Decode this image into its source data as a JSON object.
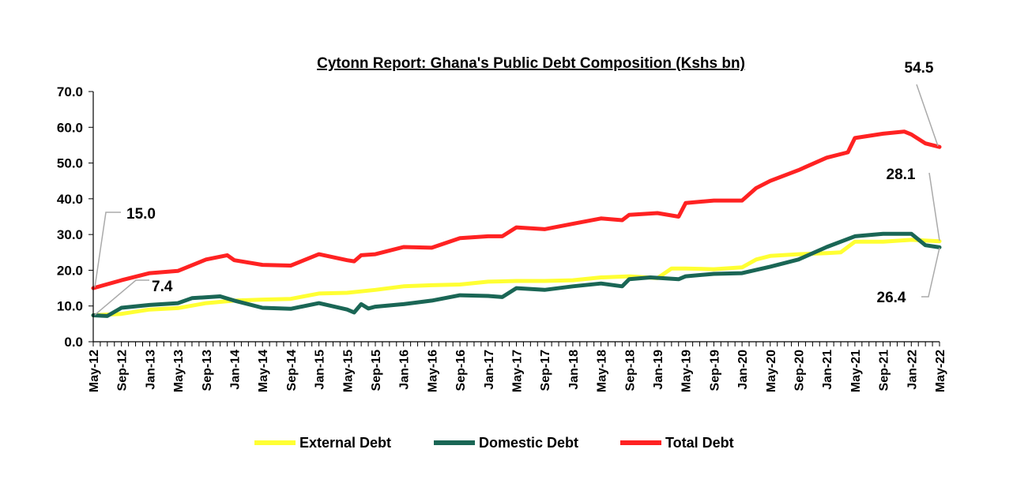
{
  "chart_data": {
    "type": "line",
    "title": "Cytonn Report: Ghana's Public Debt Composition (Kshs bn)",
    "xlabel": "",
    "ylabel": "",
    "ylim": [
      0,
      70
    ],
    "yticks": [
      "0.0",
      "10.0",
      "20.0",
      "30.0",
      "40.0",
      "50.0",
      "60.0",
      "70.0"
    ],
    "x_tick_labels": [
      "May-12",
      "Sep-12",
      "Jan-13",
      "May-13",
      "Sep-13",
      "Jan-14",
      "May-14",
      "Sep-14",
      "Jan-15",
      "May-15",
      "Sep-15",
      "Jan-16",
      "May-16",
      "Sep-16",
      "Jan-17",
      "May-17",
      "Sep-17",
      "Jan-18",
      "May-18",
      "Sep-18",
      "Jan-19",
      "May-19",
      "Sep-19",
      "Jan-20",
      "May-20",
      "Sep-20",
      "Jan-21",
      "May-21",
      "Sep-21",
      "Jan-22",
      "May-22"
    ],
    "x_range": [
      "May-12",
      "May-22"
    ],
    "grid": false,
    "legend_position": "bottom",
    "series": [
      {
        "name": "External Debt",
        "color": "#ffff33",
        "points": [
          [
            "May-12",
            7.4
          ],
          [
            "Sep-12",
            7.8
          ],
          [
            "Jan-13",
            9.0
          ],
          [
            "May-13",
            9.4
          ],
          [
            "Sep-13",
            10.8
          ],
          [
            "Jan-14",
            11.5
          ],
          [
            "May-14",
            11.8
          ],
          [
            "Sep-14",
            12.0
          ],
          [
            "Jan-15",
            13.5
          ],
          [
            "May-15",
            13.7
          ],
          [
            "Sep-15",
            14.5
          ],
          [
            "Jan-16",
            15.5
          ],
          [
            "May-16",
            15.8
          ],
          [
            "Sep-16",
            16.0
          ],
          [
            "Jan-17",
            16.8
          ],
          [
            "May-17",
            17.0
          ],
          [
            "Sep-17",
            17.0
          ],
          [
            "Jan-18",
            17.2
          ],
          [
            "May-18",
            18.0
          ],
          [
            "Sep-18",
            18.3
          ],
          [
            "Jan-19",
            17.8
          ],
          [
            "Mar-19",
            20.5
          ],
          [
            "May-19",
            20.5
          ],
          [
            "Sep-19",
            20.3
          ],
          [
            "Jan-20",
            20.8
          ],
          [
            "Mar-20",
            23.0
          ],
          [
            "May-20",
            24.0
          ],
          [
            "Sep-20",
            24.5
          ],
          [
            "Jan-21",
            24.8
          ],
          [
            "Mar-21",
            25.0
          ],
          [
            "May-21",
            28.0
          ],
          [
            "Sep-21",
            28.0
          ],
          [
            "Jan-22",
            28.5
          ],
          [
            "May-22",
            28.1
          ]
        ]
      },
      {
        "name": "Domestic Debt",
        "color": "#1a6655",
        "points": [
          [
            "May-12",
            7.4
          ],
          [
            "Jul-12",
            7.2
          ],
          [
            "Sep-12",
            9.5
          ],
          [
            "Jan-13",
            10.3
          ],
          [
            "May-13",
            10.8
          ],
          [
            "Jul-13",
            12.2
          ],
          [
            "Nov-13",
            12.7
          ],
          [
            "Jan-14",
            11.5
          ],
          [
            "May-14",
            9.5
          ],
          [
            "Sep-14",
            9.2
          ],
          [
            "Jan-15",
            10.8
          ],
          [
            "May-15",
            9.0
          ],
          [
            "Jun-15",
            8.2
          ],
          [
            "Jul-15",
            10.5
          ],
          [
            "Aug-15",
            9.3
          ],
          [
            "Sep-15",
            9.8
          ],
          [
            "Jan-16",
            10.5
          ],
          [
            "May-16",
            11.5
          ],
          [
            "Sep-16",
            13.0
          ],
          [
            "Jan-17",
            12.8
          ],
          [
            "Mar-17",
            12.5
          ],
          [
            "May-17",
            15.0
          ],
          [
            "Sep-17",
            14.5
          ],
          [
            "Jan-18",
            15.5
          ],
          [
            "May-18",
            16.3
          ],
          [
            "Aug-18",
            15.5
          ],
          [
            "Sep-18",
            17.5
          ],
          [
            "Dec-18",
            18.0
          ],
          [
            "Apr-19",
            17.5
          ],
          [
            "May-19",
            18.3
          ],
          [
            "Sep-19",
            19.0
          ],
          [
            "Jan-20",
            19.2
          ],
          [
            "May-20",
            21.0
          ],
          [
            "Sep-20",
            23.0
          ],
          [
            "Jan-21",
            26.5
          ],
          [
            "May-21",
            29.5
          ],
          [
            "Sep-21",
            30.2
          ],
          [
            "Jan-22",
            30.2
          ],
          [
            "Mar-22",
            27.0
          ],
          [
            "May-22",
            26.4
          ]
        ]
      },
      {
        "name": "Total Debt",
        "color": "#ff2222",
        "points": [
          [
            "May-12",
            15.0
          ],
          [
            "Sep-12",
            17.2
          ],
          [
            "Jan-13",
            19.2
          ],
          [
            "May-13",
            19.8
          ],
          [
            "Sep-13",
            23.0
          ],
          [
            "Dec-13",
            24.2
          ],
          [
            "Jan-14",
            22.8
          ],
          [
            "May-14",
            21.5
          ],
          [
            "Sep-14",
            21.3
          ],
          [
            "Jan-15",
            24.5
          ],
          [
            "May-15",
            22.8
          ],
          [
            "Jun-15",
            22.5
          ],
          [
            "Jul-15",
            24.2
          ],
          [
            "Sep-15",
            24.5
          ],
          [
            "Jan-16",
            26.5
          ],
          [
            "May-16",
            26.3
          ],
          [
            "Sep-16",
            29.0
          ],
          [
            "Jan-17",
            29.5
          ],
          [
            "Mar-17",
            29.5
          ],
          [
            "May-17",
            32.0
          ],
          [
            "Sep-17",
            31.5
          ],
          [
            "Jan-18",
            33.0
          ],
          [
            "May-18",
            34.5
          ],
          [
            "Aug-18",
            34.0
          ],
          [
            "Sep-18",
            35.5
          ],
          [
            "Jan-19",
            36.0
          ],
          [
            "Apr-19",
            35.0
          ],
          [
            "May-19",
            38.8
          ],
          [
            "Sep-19",
            39.5
          ],
          [
            "Jan-20",
            39.5
          ],
          [
            "Mar-20",
            43.0
          ],
          [
            "May-20",
            45.0
          ],
          [
            "Sep-20",
            48.0
          ],
          [
            "Jan-21",
            51.5
          ],
          [
            "Apr-21",
            53.0
          ],
          [
            "May-21",
            57.0
          ],
          [
            "Sep-21",
            58.2
          ],
          [
            "Dec-21",
            58.8
          ],
          [
            "Jan-22",
            58.0
          ],
          [
            "Mar-22",
            55.5
          ],
          [
            "May-22",
            54.5
          ]
        ]
      }
    ],
    "annotations": [
      {
        "text": "15.0",
        "series": "Total Debt",
        "x": "May-12",
        "y": 15.0
      },
      {
        "text": "7.4",
        "series": "External Debt",
        "x": "May-12",
        "y": 7.4
      },
      {
        "text": "54.5",
        "series": "Total Debt",
        "x": "May-22",
        "y": 54.5
      },
      {
        "text": "28.1",
        "series": "External Debt",
        "x": "May-22",
        "y": 28.1
      },
      {
        "text": "26.4",
        "series": "Domestic Debt",
        "x": "May-22",
        "y": 26.4
      }
    ]
  }
}
